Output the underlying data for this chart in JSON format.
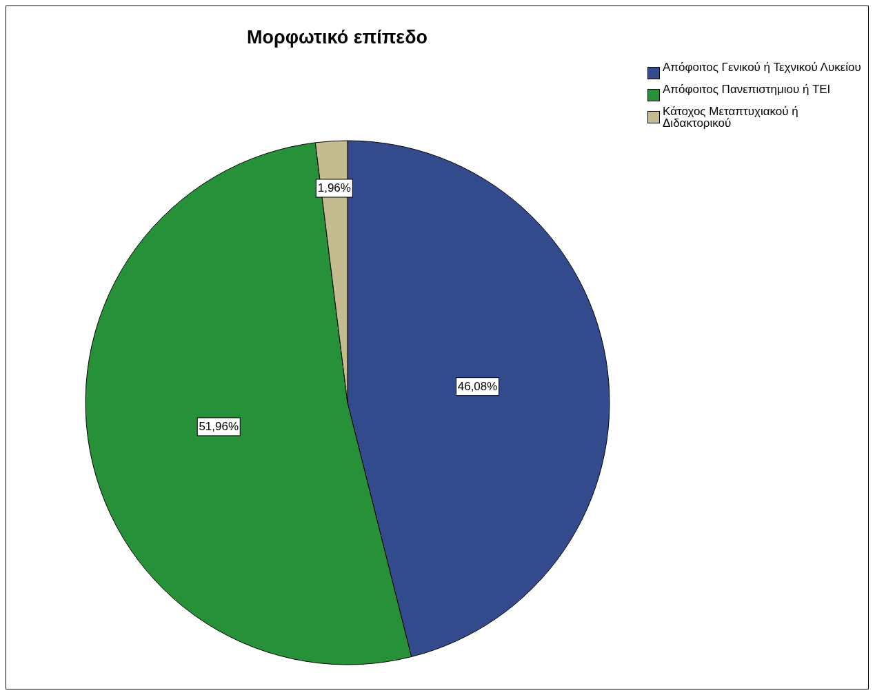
{
  "chart_data": {
    "type": "pie",
    "title": "Μορφωτικό επίπεδο",
    "categories": [
      "Απόφοιτος Γενικού ή Τεχνικού Λυκείου",
      "Απόφοιτος Πανεπιστημιου ή ΤΕΙ",
      "Κάτοχος Μεταπτυχιακού ή Διδακτορικού"
    ],
    "values": [
      46.08,
      51.96,
      1.96
    ],
    "colors": [
      "#334a8c",
      "#27913a",
      "#c4bb8e"
    ],
    "value_labels": [
      "46,08%",
      "51,96%",
      "1,96%"
    ],
    "legend": "top right"
  }
}
